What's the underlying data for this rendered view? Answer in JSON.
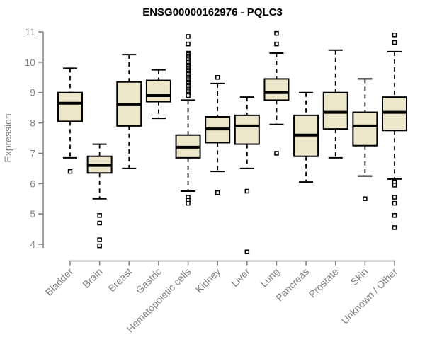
{
  "title": "ENSG00000162976 - PQLC3",
  "colors": {
    "box_fill": "#ECE7CB",
    "box_stroke": "#000000",
    "median": "#000000",
    "whisker": "#000000",
    "outlier_stroke": "#000000",
    "outlier_fill": "#ffffff",
    "axis": "#7F7F7F",
    "tick_text": "#7F7F7F",
    "title_text": "#000000"
  },
  "chart_data": {
    "type": "boxplot",
    "title": "ENSG00000162976 - PQLC3",
    "xlabel": "",
    "ylabel": "Expression",
    "ylim": [
      4,
      11
    ],
    "yticks": [
      4,
      5,
      6,
      7,
      8,
      9,
      10,
      11
    ],
    "grid": false,
    "legend": "none",
    "categories": [
      "Bladder",
      "Brain",
      "Breast",
      "Gastric",
      "Hematopoietic cells",
      "Kidney",
      "Liver",
      "Lung",
      "Pancreas",
      "Prostate",
      "Skin",
      "Unknown / Other"
    ],
    "series": [
      {
        "name": "Bladder",
        "whisker_low": 6.85,
        "q1": 8.05,
        "median": 8.65,
        "q3": 9.0,
        "whisker_high": 9.8,
        "outliers": [
          6.4
        ]
      },
      {
        "name": "Brain",
        "whisker_low": 5.5,
        "q1": 6.35,
        "median": 6.6,
        "q3": 6.9,
        "whisker_high": 7.3,
        "outliers": [
          4.95,
          4.7,
          4.15,
          3.95
        ]
      },
      {
        "name": "Breast",
        "whisker_low": 6.5,
        "q1": 7.9,
        "median": 8.6,
        "q3": 9.35,
        "whisker_high": 10.25,
        "outliers": []
      },
      {
        "name": "Gastric",
        "whisker_low": 8.15,
        "q1": 8.7,
        "median": 8.9,
        "q3": 9.4,
        "whisker_high": 9.75,
        "outliers": []
      },
      {
        "name": "Hematopoietic cells",
        "whisker_low": 5.75,
        "q1": 6.85,
        "median": 7.2,
        "q3": 7.6,
        "whisker_high": 8.75,
        "outliers": [
          10.85,
          10.6,
          10.3,
          10.25,
          10.2,
          10.15,
          10.1,
          10.05,
          10.0,
          9.95,
          9.9,
          9.85,
          9.8,
          9.75,
          9.7,
          9.65,
          9.6,
          9.55,
          9.5,
          9.45,
          9.4,
          9.35,
          9.3,
          9.25,
          9.2,
          9.15,
          9.1,
          9.05,
          9.0,
          8.95,
          8.9,
          5.55,
          5.45,
          5.35
        ]
      },
      {
        "name": "Kidney",
        "whisker_low": 6.4,
        "q1": 7.35,
        "median": 7.8,
        "q3": 8.2,
        "whisker_high": 9.3,
        "outliers": [
          9.5,
          5.7
        ]
      },
      {
        "name": "Liver",
        "whisker_low": 6.5,
        "q1": 7.3,
        "median": 7.9,
        "q3": 8.25,
        "whisker_high": 8.85,
        "outliers": [
          5.75,
          3.75
        ]
      },
      {
        "name": "Lung",
        "whisker_low": 7.95,
        "q1": 8.75,
        "median": 9.0,
        "q3": 9.45,
        "whisker_high": 10.3,
        "outliers": [
          10.95,
          10.6,
          7.0
        ]
      },
      {
        "name": "Pancreas",
        "whisker_low": 6.05,
        "q1": 6.9,
        "median": 7.6,
        "q3": 8.25,
        "whisker_high": 9.0,
        "outliers": []
      },
      {
        "name": "Prostate",
        "whisker_low": 6.85,
        "q1": 7.8,
        "median": 8.35,
        "q3": 9.0,
        "whisker_high": 10.4,
        "outliers": []
      },
      {
        "name": "Skin",
        "whisker_low": 6.25,
        "q1": 7.25,
        "median": 7.9,
        "q3": 8.35,
        "whisker_high": 9.45,
        "outliers": [
          5.5
        ]
      },
      {
        "name": "Unknown / Other",
        "whisker_low": 6.15,
        "q1": 7.75,
        "median": 8.35,
        "q3": 8.85,
        "whisker_high": 10.35,
        "outliers": [
          10.9,
          10.65,
          6.05,
          5.95,
          5.55,
          5.35,
          4.95,
          4.55
        ]
      }
    ]
  }
}
